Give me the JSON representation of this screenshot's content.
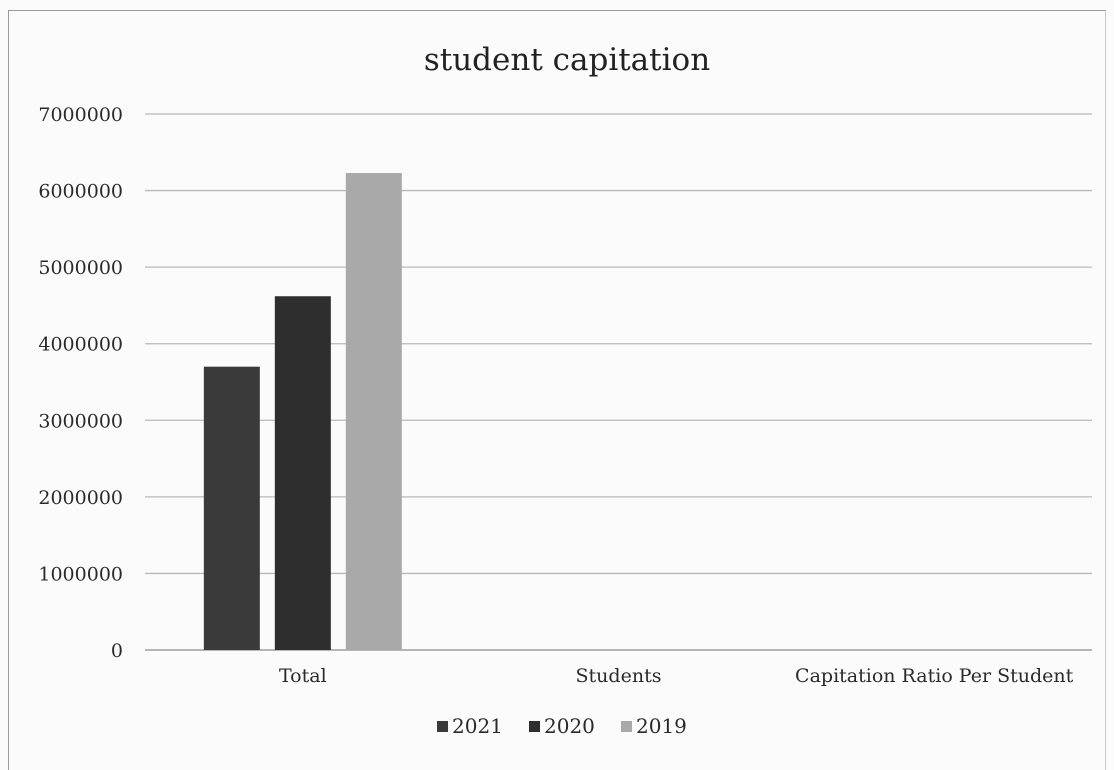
{
  "chart_data": {
    "type": "bar",
    "title": "student capitation",
    "categories": [
      "Total",
      "Students",
      "Capitation Ratio Per Student"
    ],
    "series": [
      {
        "name": "2021",
        "values": [
          3700000,
          null,
          null
        ],
        "color": "#3a3a3a"
      },
      {
        "name": "2020",
        "values": [
          4620000,
          null,
          null
        ],
        "color": "#2e2e2e"
      },
      {
        "name": "2019",
        "values": [
          6230000,
          null,
          null
        ],
        "color": "#a9a9a9"
      }
    ],
    "ylim": [
      0,
      7000000
    ],
    "yticks": [
      0,
      1000000,
      2000000,
      3000000,
      4000000,
      5000000,
      6000000,
      7000000
    ],
    "ytick_labels": [
      "0",
      "1000000",
      "2000000",
      "3000000",
      "4000000",
      "5000000",
      "6000000",
      "7000000"
    ],
    "grid": true,
    "legend": "bottom"
  }
}
